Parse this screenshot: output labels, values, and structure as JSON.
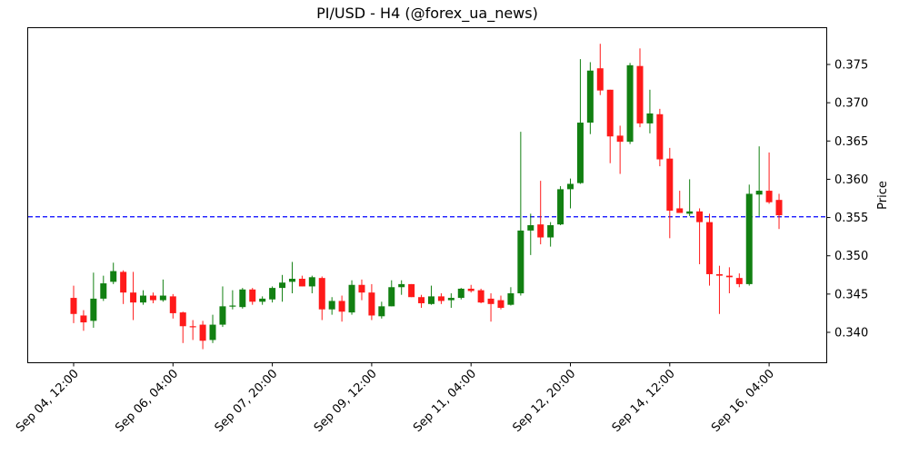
{
  "title": "PI/USD - H4 (@forex_ua_news)",
  "colors": {
    "up": "#128012",
    "down": "#ff1a1a",
    "hline": "#0000ff",
    "axis": "#000000"
  },
  "chart_data": {
    "type": "candlestick",
    "title": "PI/USD - H4 (@forex_ua_news)",
    "xlabel": "",
    "ylabel": "Price",
    "ylim": [
      0.3357,
      0.3795
    ],
    "yticks": [
      0.34,
      0.345,
      0.35,
      0.355,
      0.36,
      0.365,
      0.37,
      0.375
    ],
    "ytick_labels": [
      "0.340",
      "0.345",
      "0.350",
      "0.355",
      "0.360",
      "0.365",
      "0.370",
      "0.375"
    ],
    "xtick_labels": [
      "Sep 04, 12:00",
      "Sep 06, 04:00",
      "Sep 07, 20:00",
      "Sep 09, 12:00",
      "Sep 11, 04:00",
      "Sep 12, 20:00",
      "Sep 14, 12:00",
      "Sep 16, 04:00"
    ],
    "xtick_index": [
      0,
      10,
      20,
      30,
      40,
      50,
      60,
      70
    ],
    "grid": false,
    "hline": {
      "value": 0.3551,
      "style": "dashed",
      "color": "#0000ff"
    },
    "interval": "4h",
    "candles": [
      {
        "t": "Sep 04, 12:00",
        "o": 0.3445,
        "h": 0.3461,
        "l": 0.3412,
        "c": 0.3424
      },
      {
        "t": "Sep 04, 16:00",
        "o": 0.3422,
        "h": 0.3429,
        "l": 0.3402,
        "c": 0.3413
      },
      {
        "t": "Sep 04, 20:00",
        "o": 0.3415,
        "h": 0.3478,
        "l": 0.3406,
        "c": 0.3444
      },
      {
        "t": "Sep 05, 00:00",
        "o": 0.3444,
        "h": 0.3474,
        "l": 0.3441,
        "c": 0.3464
      },
      {
        "t": "Sep 05, 04:00",
        "o": 0.3466,
        "h": 0.3491,
        "l": 0.3463,
        "c": 0.348
      },
      {
        "t": "Sep 05, 08:00",
        "o": 0.3479,
        "h": 0.3481,
        "l": 0.3437,
        "c": 0.3452
      },
      {
        "t": "Sep 05, 12:00",
        "o": 0.3452,
        "h": 0.3479,
        "l": 0.3416,
        "c": 0.3439
      },
      {
        "t": "Sep 05, 16:00",
        "o": 0.3439,
        "h": 0.3455,
        "l": 0.3436,
        "c": 0.3448
      },
      {
        "t": "Sep 05, 20:00",
        "o": 0.3448,
        "h": 0.3452,
        "l": 0.3438,
        "c": 0.3442
      },
      {
        "t": "Sep 06, 00:00",
        "o": 0.3442,
        "h": 0.3469,
        "l": 0.344,
        "c": 0.3448
      },
      {
        "t": "Sep 06, 04:00",
        "o": 0.3447,
        "h": 0.345,
        "l": 0.3418,
        "c": 0.3425
      },
      {
        "t": "Sep 06, 08:00",
        "o": 0.3426,
        "h": 0.3427,
        "l": 0.3386,
        "c": 0.3408
      },
      {
        "t": "Sep 06, 12:00",
        "o": 0.3408,
        "h": 0.3416,
        "l": 0.339,
        "c": 0.3407
      },
      {
        "t": "Sep 06, 16:00",
        "o": 0.341,
        "h": 0.3415,
        "l": 0.3378,
        "c": 0.3389
      },
      {
        "t": "Sep 06, 20:00",
        "o": 0.339,
        "h": 0.3423,
        "l": 0.3386,
        "c": 0.341
      },
      {
        "t": "Sep 07, 00:00",
        "o": 0.341,
        "h": 0.346,
        "l": 0.3407,
        "c": 0.3434
      },
      {
        "t": "Sep 07, 04:00",
        "o": 0.3434,
        "h": 0.3455,
        "l": 0.343,
        "c": 0.3435
      },
      {
        "t": "Sep 07, 08:00",
        "o": 0.3433,
        "h": 0.3458,
        "l": 0.3431,
        "c": 0.3456
      },
      {
        "t": "Sep 07, 12:00",
        "o": 0.3456,
        "h": 0.3458,
        "l": 0.3436,
        "c": 0.344
      },
      {
        "t": "Sep 07, 16:00",
        "o": 0.344,
        "h": 0.3447,
        "l": 0.3436,
        "c": 0.3444
      },
      {
        "t": "Sep 07, 20:00",
        "o": 0.3443,
        "h": 0.346,
        "l": 0.3439,
        "c": 0.3458
      },
      {
        "t": "Sep 08, 00:00",
        "o": 0.3458,
        "h": 0.3475,
        "l": 0.344,
        "c": 0.3465
      },
      {
        "t": "Sep 08, 04:00",
        "o": 0.3466,
        "h": 0.3492,
        "l": 0.3451,
        "c": 0.347
      },
      {
        "t": "Sep 08, 08:00",
        "o": 0.347,
        "h": 0.3474,
        "l": 0.346,
        "c": 0.346
      },
      {
        "t": "Sep 08, 12:00",
        "o": 0.346,
        "h": 0.3474,
        "l": 0.3451,
        "c": 0.3472
      },
      {
        "t": "Sep 08, 16:00",
        "o": 0.3471,
        "h": 0.3473,
        "l": 0.3416,
        "c": 0.343
      },
      {
        "t": "Sep 08, 20:00",
        "o": 0.343,
        "h": 0.3446,
        "l": 0.3423,
        "c": 0.3441
      },
      {
        "t": "Sep 09, 00:00",
        "o": 0.3441,
        "h": 0.3448,
        "l": 0.3414,
        "c": 0.3427
      },
      {
        "t": "Sep 09, 04:00",
        "o": 0.3426,
        "h": 0.3468,
        "l": 0.3423,
        "c": 0.3462
      },
      {
        "t": "Sep 09, 08:00",
        "o": 0.3462,
        "h": 0.3469,
        "l": 0.3442,
        "c": 0.3452
      },
      {
        "t": "Sep 09, 12:00",
        "o": 0.3452,
        "h": 0.3463,
        "l": 0.3416,
        "c": 0.3422
      },
      {
        "t": "Sep 09, 16:00",
        "o": 0.3421,
        "h": 0.344,
        "l": 0.3418,
        "c": 0.3434
      },
      {
        "t": "Sep 09, 20:00",
        "o": 0.3434,
        "h": 0.3468,
        "l": 0.3434,
        "c": 0.3459
      },
      {
        "t": "Sep 10, 00:00",
        "o": 0.3459,
        "h": 0.3468,
        "l": 0.3449,
        "c": 0.3463
      },
      {
        "t": "Sep 10, 04:00",
        "o": 0.3463,
        "h": 0.3463,
        "l": 0.3446,
        "c": 0.3446
      },
      {
        "t": "Sep 10, 08:00",
        "o": 0.3446,
        "h": 0.3449,
        "l": 0.3432,
        "c": 0.3438
      },
      {
        "t": "Sep 10, 12:00",
        "o": 0.3437,
        "h": 0.3461,
        "l": 0.3436,
        "c": 0.3447
      },
      {
        "t": "Sep 10, 16:00",
        "o": 0.3447,
        "h": 0.3451,
        "l": 0.3437,
        "c": 0.3441
      },
      {
        "t": "Sep 10, 20:00",
        "o": 0.3442,
        "h": 0.3451,
        "l": 0.3432,
        "c": 0.3445
      },
      {
        "t": "Sep 11, 00:00",
        "o": 0.3445,
        "h": 0.3458,
        "l": 0.3443,
        "c": 0.3457
      },
      {
        "t": "Sep 11, 04:00",
        "o": 0.3457,
        "h": 0.3462,
        "l": 0.3452,
        "c": 0.3454
      },
      {
        "t": "Sep 11, 08:00",
        "o": 0.3455,
        "h": 0.3457,
        "l": 0.3438,
        "c": 0.3439
      },
      {
        "t": "Sep 11, 12:00",
        "o": 0.3444,
        "h": 0.3451,
        "l": 0.3414,
        "c": 0.3437
      },
      {
        "t": "Sep 11, 16:00",
        "o": 0.3442,
        "h": 0.3448,
        "l": 0.343,
        "c": 0.3432
      },
      {
        "t": "Sep 11, 20:00",
        "o": 0.3436,
        "h": 0.3459,
        "l": 0.3435,
        "c": 0.3451
      },
      {
        "t": "Sep 12, 00:00",
        "o": 0.3451,
        "h": 0.3662,
        "l": 0.3448,
        "c": 0.3533
      },
      {
        "t": "Sep 12, 04:00",
        "o": 0.3533,
        "h": 0.3555,
        "l": 0.3501,
        "c": 0.354
      },
      {
        "t": "Sep 12, 08:00",
        "o": 0.3541,
        "h": 0.3598,
        "l": 0.3515,
        "c": 0.3524
      },
      {
        "t": "Sep 12, 12:00",
        "o": 0.3524,
        "h": 0.3544,
        "l": 0.3512,
        "c": 0.354
      },
      {
        "t": "Sep 12, 16:00",
        "o": 0.3541,
        "h": 0.3591,
        "l": 0.354,
        "c": 0.3587
      },
      {
        "t": "Sep 12, 20:00",
        "o": 0.3587,
        "h": 0.3601,
        "l": 0.3562,
        "c": 0.3594
      },
      {
        "t": "Sep 13, 00:00",
        "o": 0.3595,
        "h": 0.3757,
        "l": 0.3594,
        "c": 0.3674
      },
      {
        "t": "Sep 13, 04:00",
        "o": 0.3674,
        "h": 0.3753,
        "l": 0.3659,
        "c": 0.3742
      },
      {
        "t": "Sep 13, 08:00",
        "o": 0.3745,
        "h": 0.3777,
        "l": 0.371,
        "c": 0.3716
      },
      {
        "t": "Sep 13, 12:00",
        "o": 0.3717,
        "h": 0.3717,
        "l": 0.3621,
        "c": 0.3656
      },
      {
        "t": "Sep 13, 16:00",
        "o": 0.3657,
        "h": 0.367,
        "l": 0.3607,
        "c": 0.3649
      },
      {
        "t": "Sep 13, 20:00",
        "o": 0.3649,
        "h": 0.3752,
        "l": 0.3646,
        "c": 0.3749
      },
      {
        "t": "Sep 14, 00:00",
        "o": 0.3748,
        "h": 0.3771,
        "l": 0.3668,
        "c": 0.3673
      },
      {
        "t": "Sep 14, 04:00",
        "o": 0.3673,
        "h": 0.3717,
        "l": 0.366,
        "c": 0.3686
      },
      {
        "t": "Sep 14, 08:00",
        "o": 0.3685,
        "h": 0.3692,
        "l": 0.3617,
        "c": 0.3626
      },
      {
        "t": "Sep 14, 12:00",
        "o": 0.3627,
        "h": 0.3641,
        "l": 0.3523,
        "c": 0.3559
      },
      {
        "t": "Sep 14, 16:00",
        "o": 0.3562,
        "h": 0.3585,
        "l": 0.3556,
        "c": 0.3556
      },
      {
        "t": "Sep 14, 20:00",
        "o": 0.3555,
        "h": 0.36,
        "l": 0.3552,
        "c": 0.3558
      },
      {
        "t": "Sep 15, 00:00",
        "o": 0.3558,
        "h": 0.3562,
        "l": 0.3489,
        "c": 0.3544
      },
      {
        "t": "Sep 15, 04:00",
        "o": 0.3544,
        "h": 0.3555,
        "l": 0.3461,
        "c": 0.3476
      },
      {
        "t": "Sep 15, 08:00",
        "o": 0.3476,
        "h": 0.3487,
        "l": 0.3424,
        "c": 0.3474
      },
      {
        "t": "Sep 15, 12:00",
        "o": 0.3474,
        "h": 0.3485,
        "l": 0.3451,
        "c": 0.3472
      },
      {
        "t": "Sep 15, 16:00",
        "o": 0.3471,
        "h": 0.3477,
        "l": 0.3459,
        "c": 0.3463
      },
      {
        "t": "Sep 15, 20:00",
        "o": 0.3463,
        "h": 0.3593,
        "l": 0.3461,
        "c": 0.3581
      },
      {
        "t": "Sep 16, 00:00",
        "o": 0.358,
        "h": 0.3643,
        "l": 0.3552,
        "c": 0.3585
      },
      {
        "t": "Sep 16, 04:00",
        "o": 0.3585,
        "h": 0.3635,
        "l": 0.3568,
        "c": 0.357
      },
      {
        "t": "Sep 16, 08:00",
        "o": 0.3573,
        "h": 0.3581,
        "l": 0.3535,
        "c": 0.3553
      }
    ]
  }
}
